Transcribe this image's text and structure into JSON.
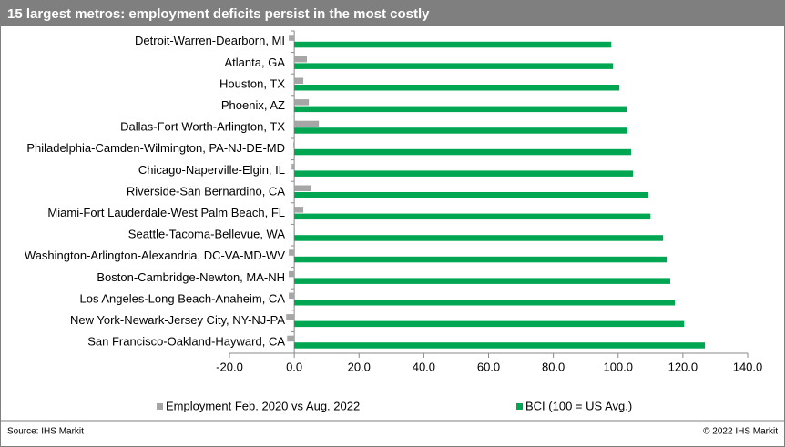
{
  "chart_data": {
    "type": "hbar",
    "title": "15 largest metros: employment deficits persist in the most costly",
    "categories": [
      "Detroit-Warren-Dearborn, MI",
      "Atlanta, GA",
      "Houston, TX",
      "Phoenix, AZ",
      "Dallas-Fort Worth-Arlington, TX",
      "Philadelphia-Camden-Wilmington, PA-NJ-DE-MD",
      "Chicago-Naperville-Elgin, IL",
      "Riverside-San Bernardino, CA",
      "Miami-Fort Lauderdale-West Palm Beach, FL",
      "Seattle-Tacoma-Bellevue, WA",
      "Washington-Arlington-Alexandria, DC-VA-MD-WV",
      "Boston-Cambridge-Newton, MA-NH",
      "Los Angeles-Long Beach-Anaheim, CA",
      "New York-Newark-Jersey City, NY-NJ-PA",
      "San Francisco-Oakland-Hayward, CA"
    ],
    "series": [
      {
        "name": "Employment Feb. 2020 vs Aug. 2022",
        "color": "#a6a6a6",
        "values": [
          -1.7,
          3.9,
          2.8,
          4.5,
          7.6,
          -0.3,
          -0.8,
          5.3,
          2.8,
          0.2,
          -1.7,
          -1.7,
          -1.7,
          -2.5,
          -2.2
        ]
      },
      {
        "name": "BCI (100 = US Avg.)",
        "color": "#00a651",
        "values": [
          97.9,
          98.4,
          100.4,
          102.6,
          102.9,
          104.0,
          104.6,
          109.4,
          110.0,
          113.9,
          115.0,
          116.1,
          117.5,
          120.4,
          126.8
        ]
      }
    ],
    "xlim": [
      -20,
      140
    ],
    "xticks": [
      {
        "value": -20,
        "label": "-20.0"
      },
      {
        "value": 0,
        "label": "0.0"
      },
      {
        "value": 20,
        "label": "20.0"
      },
      {
        "value": 40,
        "label": "40.0"
      },
      {
        "value": 60,
        "label": "60.0"
      },
      {
        "value": 80,
        "label": "80.0"
      },
      {
        "value": 100,
        "label": "100.0"
      },
      {
        "value": 120,
        "label": "120.0"
      },
      {
        "value": 140,
        "label": "140.0"
      }
    ],
    "source": "Source:  IHS Markit",
    "copyright": "© 2022  IHS Markit"
  }
}
